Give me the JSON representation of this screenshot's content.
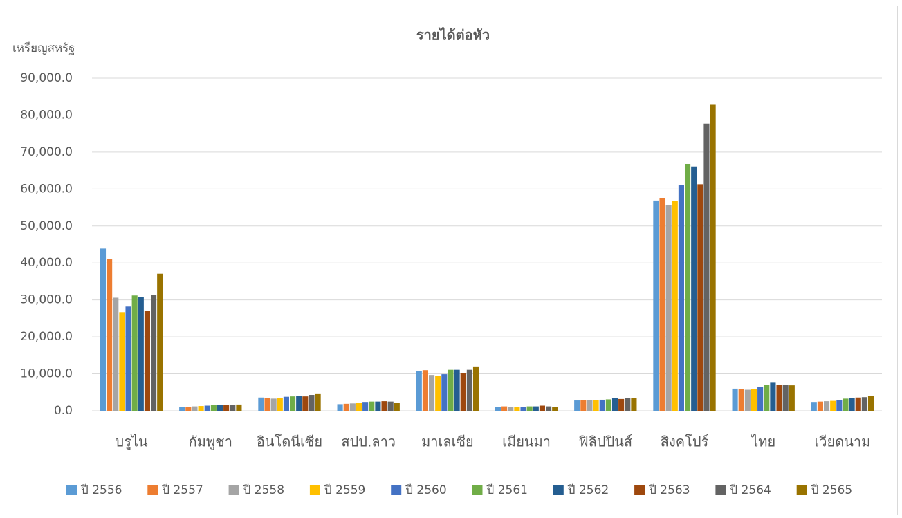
{
  "chart_data": {
    "type": "bar",
    "title": "รายได้ต่อหัว",
    "y_label": "เหรียญสหรัฐ",
    "categories": [
      "บรูไน",
      "กัมพูชา",
      "อินโดนีเซีย",
      "สปป.ลาว",
      "มาเลเซีย",
      "เมียนมา",
      "ฟิลิปปินส์",
      "สิงคโปร์",
      "ไทย",
      "เวียดนาม"
    ],
    "series": [
      {
        "name": "ปี 2556",
        "color": "#5b9bd5",
        "values": [
          43900,
          1000,
          3600,
          1800,
          10700,
          1100,
          2800,
          56900,
          6000,
          2400
        ]
      },
      {
        "name": "ปี 2557",
        "color": "#ed7d31",
        "values": [
          41000,
          1100,
          3500,
          1900,
          11000,
          1200,
          2900,
          57500,
          5800,
          2500
        ]
      },
      {
        "name": "ปี 2558",
        "color": "#a5a5a5",
        "values": [
          30600,
          1200,
          3300,
          2000,
          9700,
          1100,
          2900,
          55600,
          5700,
          2600
        ]
      },
      {
        "name": "ปี 2559",
        "color": "#ffc000",
        "values": [
          26700,
          1300,
          3500,
          2200,
          9500,
          1100,
          2900,
          56800,
          5900,
          2700
        ]
      },
      {
        "name": "ปี 2560",
        "color": "#4472c4",
        "values": [
          28200,
          1400,
          3800,
          2400,
          9900,
          1100,
          3000,
          61100,
          6400,
          2900
        ]
      },
      {
        "name": "ปี 2561",
        "color": "#70ad47",
        "values": [
          31200,
          1500,
          3900,
          2500,
          11100,
          1200,
          3100,
          66800,
          7100,
          3300
        ]
      },
      {
        "name": "ปี 2562",
        "color": "#255e91",
        "values": [
          30700,
          1600,
          4100,
          2500,
          11100,
          1200,
          3400,
          66100,
          7600,
          3500
        ]
      },
      {
        "name": "ปี 2563",
        "color": "#9e480e",
        "values": [
          27100,
          1500,
          3900,
          2600,
          10200,
          1400,
          3200,
          61300,
          7000,
          3600
        ]
      },
      {
        "name": "ปี 2564",
        "color": "#636363",
        "values": [
          31400,
          1600,
          4300,
          2500,
          11100,
          1200,
          3400,
          77700,
          7000,
          3700
        ]
      },
      {
        "name": "ปี 2565",
        "color": "#997300",
        "values": [
          37100,
          1700,
          4700,
          2100,
          12000,
          1100,
          3500,
          82800,
          6900,
          4100
        ]
      }
    ],
    "ylim": [
      0,
      90000
    ],
    "yticks": [
      {
        "value": 0,
        "label": "0.0"
      },
      {
        "value": 10000,
        "label": "10,000.0"
      },
      {
        "value": 20000,
        "label": "20,000.0"
      },
      {
        "value": 30000,
        "label": "30,000.0"
      },
      {
        "value": 40000,
        "label": "40,000.0"
      },
      {
        "value": 50000,
        "label": "50,000.0"
      },
      {
        "value": 60000,
        "label": "60,000.0"
      },
      {
        "value": 70000,
        "label": "70,000.0"
      },
      {
        "value": 80000,
        "label": "80,000.0"
      },
      {
        "value": 90000,
        "label": "90,000.0"
      }
    ],
    "grid": true,
    "legend": "bottom"
  }
}
